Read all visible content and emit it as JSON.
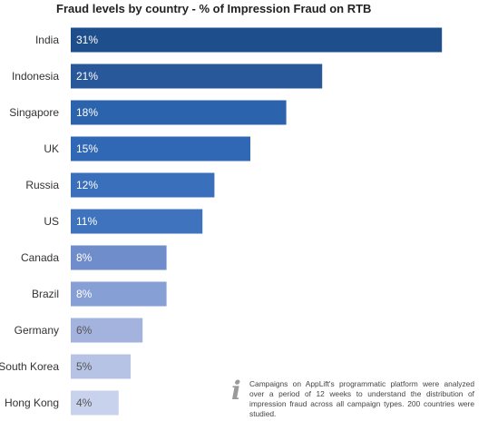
{
  "chart_data": {
    "type": "bar",
    "orientation": "horizontal",
    "title": "Fraud levels by country - % of Impression Fraud on RTB",
    "categories": [
      "India",
      "Indonesia",
      "Singapore",
      "UK",
      "Russia",
      "US",
      "Canada",
      "Brazil",
      "Germany",
      "South Korea",
      "Hong Kong"
    ],
    "values": [
      31,
      21,
      18,
      15,
      12,
      11,
      8,
      8,
      6,
      5,
      4
    ],
    "value_labels": [
      "31%",
      "21%",
      "18%",
      "15%",
      "12%",
      "11%",
      "8%",
      "8%",
      "6%",
      "5%",
      "4%"
    ],
    "unit": "%",
    "colors": [
      "#1f4e8c",
      "#28579a",
      "#2c63ad",
      "#3068b5",
      "#3a6fbc",
      "#3f73be",
      "#6f8dca",
      "#869fd4",
      "#a3b3de",
      "#b6c3e5",
      "#c9d2ec"
    ],
    "value_label_colors": [
      "#ffffff",
      "#ffffff",
      "#ffffff",
      "#ffffff",
      "#ffffff",
      "#ffffff",
      "#ffffff",
      "#ffffff",
      "#555555",
      "#555555",
      "#555555"
    ],
    "grid": false,
    "legend": "none"
  },
  "note": {
    "icon": "info-icon",
    "text": "Campaigns on AppLift's programmatic platform were analyzed over a period of 12 weeks to understand the distribution of impression fraud across all campaign types. 200 countries were studied."
  }
}
